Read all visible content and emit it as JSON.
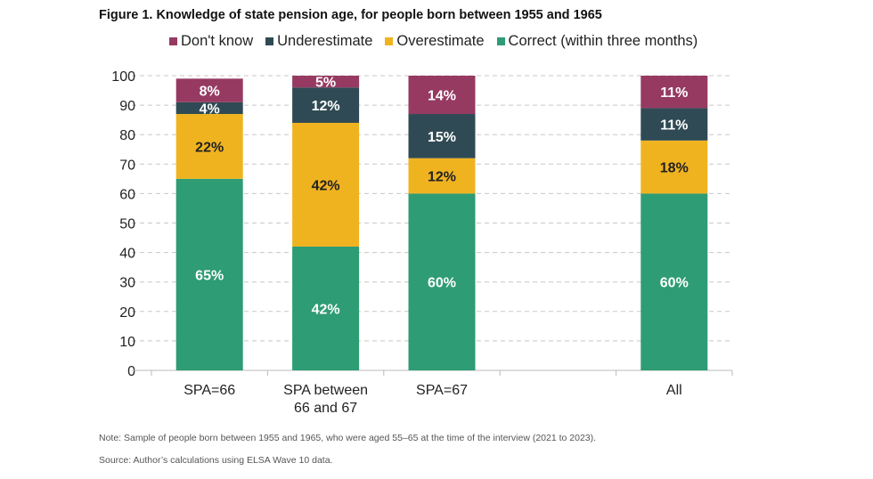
{
  "chart_data": {
    "type": "bar",
    "stacked": true,
    "title": "Figure 1. Knowledge of state pension age, for people born between 1955 and 1965",
    "categories": [
      [
        "SPA=66"
      ],
      [
        "SPA between",
        "66 and 67"
      ],
      [
        "SPA=67"
      ],
      [
        ""
      ],
      [
        "All"
      ]
    ],
    "series": [
      {
        "name": "Correct (within three months)",
        "color": "#2e9c74",
        "values": [
          65,
          42,
          60,
          null,
          60
        ]
      },
      {
        "name": "Overestimate",
        "color": "#f0b320",
        "values": [
          22,
          42,
          12,
          null,
          18
        ]
      },
      {
        "name": "Underestimate",
        "color": "#2f4a54",
        "values": [
          4,
          12,
          15,
          null,
          11
        ]
      },
      {
        "name": "Don't know",
        "color": "#963a62",
        "values": [
          8,
          5,
          14,
          null,
          11
        ]
      }
    ],
    "legend_order": [
      3,
      2,
      1,
      0
    ],
    "legend_position": "top",
    "ylim": [
      0,
      100
    ],
    "yticks": [
      0,
      10,
      20,
      30,
      40,
      50,
      60,
      70,
      80,
      90,
      100
    ],
    "grid": "horizontal dashed",
    "value_suffix": "%"
  },
  "note": "Note: Sample of people born between 1955 and 1965, who were aged 55–65 at the time of the interview (2021 to 2023).",
  "source": "Source: Author’s calculations using ELSA Wave 10 data."
}
